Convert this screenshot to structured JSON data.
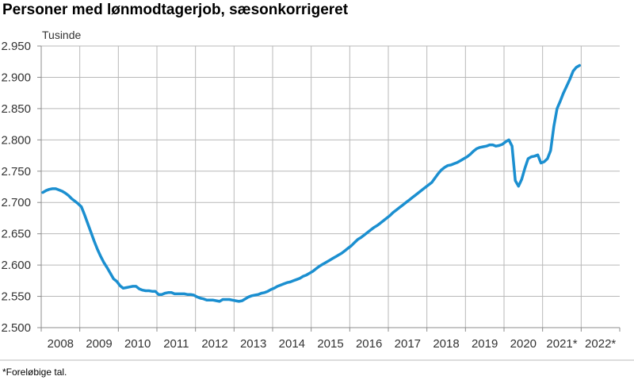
{
  "title": "Personer med lønmodtagerjob, sæsonkorrigeret",
  "footnote": "*Foreløbige tal.",
  "colors": {
    "line": "#1b8fd0",
    "grid": "#b9b9b9",
    "axis": "#8c8c8c"
  },
  "chart_data": {
    "type": "line",
    "title": "Personer med lønmodtagerjob, sæsonkorrigeret",
    "ylabel": "Tusinde",
    "xlabel": "",
    "ylim": [
      2500,
      2950
    ],
    "y_ticks": [
      2500,
      2550,
      2600,
      2650,
      2700,
      2750,
      2800,
      2850,
      2900,
      2950
    ],
    "y_tick_labels": [
      "2.500",
      "2.550",
      "2.600",
      "2.650",
      "2.700",
      "2.750",
      "2.800",
      "2.850",
      "2.900",
      "2.950"
    ],
    "categories": [
      "2008",
      "2009",
      "2010",
      "2011",
      "2012",
      "2013",
      "2014",
      "2015",
      "2016",
      "2017",
      "2018",
      "2019",
      "2020",
      "2021*",
      "2022*"
    ],
    "grid": true,
    "series": [
      {
        "x": [
          "2008-01",
          "2008-02",
          "2008-03",
          "2008-04",
          "2008-05",
          "2008-06",
          "2008-07",
          "2008-08",
          "2008-09",
          "2008-10",
          "2008-11",
          "2008-12",
          "2009-01",
          "2009-02",
          "2009-03",
          "2009-04",
          "2009-05",
          "2009-06",
          "2009-07",
          "2009-08",
          "2009-09",
          "2009-10",
          "2009-11",
          "2009-12",
          "2010-01",
          "2010-02",
          "2010-03",
          "2010-04",
          "2010-05",
          "2010-06",
          "2010-07",
          "2010-08",
          "2010-09",
          "2010-10",
          "2010-11",
          "2010-12",
          "2011-01",
          "2011-02",
          "2011-03",
          "2011-04",
          "2011-05",
          "2011-06",
          "2011-07",
          "2011-08",
          "2011-09",
          "2011-10",
          "2011-11",
          "2011-12",
          "2012-01",
          "2012-02",
          "2012-03",
          "2012-04",
          "2012-05",
          "2012-06",
          "2012-07",
          "2012-08",
          "2012-09",
          "2012-10",
          "2012-11",
          "2012-12",
          "2013-01",
          "2013-02",
          "2013-03",
          "2013-04",
          "2013-05",
          "2013-06",
          "2013-07",
          "2013-08",
          "2013-09",
          "2013-10",
          "2013-11",
          "2013-12",
          "2014-01",
          "2014-02",
          "2014-03",
          "2014-04",
          "2014-05",
          "2014-06",
          "2014-07",
          "2014-08",
          "2014-09",
          "2014-10",
          "2014-11",
          "2014-12",
          "2015-01",
          "2015-02",
          "2015-03",
          "2015-04",
          "2015-05",
          "2015-06",
          "2015-07",
          "2015-08",
          "2015-09",
          "2015-10",
          "2015-11",
          "2015-12",
          "2016-01",
          "2016-02",
          "2016-03",
          "2016-04",
          "2016-05",
          "2016-06",
          "2016-07",
          "2016-08",
          "2016-09",
          "2016-10",
          "2016-11",
          "2016-12",
          "2017-01",
          "2017-02",
          "2017-03",
          "2017-04",
          "2017-05",
          "2017-06",
          "2017-07",
          "2017-08",
          "2017-09",
          "2017-10",
          "2017-11",
          "2017-12",
          "2018-01",
          "2018-02",
          "2018-03",
          "2018-04",
          "2018-05",
          "2018-06",
          "2018-07",
          "2018-08",
          "2018-09",
          "2018-10",
          "2018-11",
          "2018-12",
          "2019-01",
          "2019-02",
          "2019-03",
          "2019-04",
          "2019-05",
          "2019-06",
          "2019-07",
          "2019-08",
          "2019-09",
          "2019-10",
          "2019-11",
          "2019-12",
          "2020-01",
          "2020-02",
          "2020-03",
          "2020-04",
          "2020-05",
          "2020-06",
          "2020-07",
          "2020-08",
          "2020-09",
          "2020-10",
          "2020-11",
          "2020-12",
          "2021-01",
          "2021-02",
          "2021-03",
          "2021-04",
          "2021-05",
          "2021-06",
          "2021-07",
          "2021-08",
          "2021-09",
          "2021-10",
          "2021-11",
          "2021-12",
          "2022-01",
          "2022-02"
        ],
        "values": [
          2716,
          2719,
          2721,
          2722,
          2722,
          2720,
          2718,
          2715,
          2711,
          2706,
          2702,
          2698,
          2693,
          2680,
          2666,
          2652,
          2638,
          2625,
          2614,
          2604,
          2596,
          2587,
          2578,
          2574,
          2567,
          2563,
          2564,
          2565,
          2566,
          2566,
          2562,
          2560,
          2559,
          2559,
          2558,
          2558,
          2553,
          2553,
          2555,
          2556,
          2556,
          2554,
          2554,
          2554,
          2554,
          2553,
          2553,
          2552,
          2549,
          2547,
          2546,
          2544,
          2544,
          2544,
          2543,
          2542,
          2545,
          2545,
          2545,
          2544,
          2543,
          2542,
          2543,
          2546,
          2549,
          2551,
          2552,
          2553,
          2555,
          2556,
          2558,
          2561,
          2563,
          2566,
          2568,
          2570,
          2572,
          2573,
          2575,
          2577,
          2579,
          2582,
          2584,
          2587,
          2590,
          2594,
          2598,
          2601,
          2604,
          2607,
          2610,
          2613,
          2616,
          2619,
          2623,
          2627,
          2631,
          2636,
          2641,
          2644,
          2648,
          2652,
          2656,
          2660,
          2663,
          2667,
          2671,
          2675,
          2679,
          2684,
          2688,
          2692,
          2696,
          2700,
          2704,
          2708,
          2712,
          2716,
          2720,
          2724,
          2728,
          2732,
          2739,
          2746,
          2752,
          2756,
          2759,
          2760,
          2762,
          2764,
          2767,
          2770,
          2773,
          2777,
          2782,
          2786,
          2788,
          2789,
          2790,
          2792,
          2792,
          2790,
          2791,
          2793,
          2797,
          2800,
          2790,
          2735,
          2726,
          2737,
          2755,
          2770,
          2773,
          2774,
          2776,
          2763,
          2765,
          2770,
          2783,
          2822,
          2850,
          2862,
          2875,
          2886,
          2897,
          2910,
          2916,
          2919,
          null,
          null
        ]
      }
    ]
  }
}
